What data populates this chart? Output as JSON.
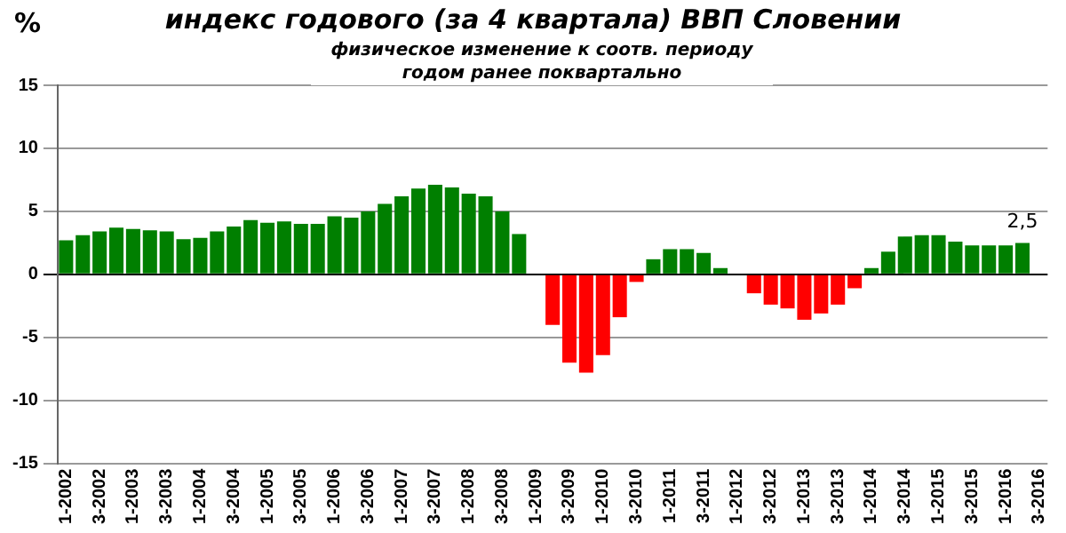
{
  "chart_data": {
    "type": "bar",
    "title": "индекс годового (за 4 квартала) ВВП Словении",
    "subtitle": "физическое изменение к соотв. периоду годом ранее поквартально",
    "ylabel": "%",
    "categories": [
      "1-2002",
      null,
      "3-2002",
      null,
      "1-2003",
      null,
      "3-2003",
      null,
      "1-2004",
      null,
      "3-2004",
      null,
      "1-2005",
      null,
      "3-2005",
      null,
      "1-2006",
      null,
      "3-2006",
      null,
      "1-2007",
      null,
      "3-2007",
      null,
      "1-2008",
      null,
      "3-2008",
      null,
      "1-2009",
      null,
      "3-2009",
      null,
      "1-2010",
      null,
      "3-2010",
      null,
      "1-2011",
      null,
      "3-2011",
      null,
      "1-2012",
      null,
      "3-2012",
      null,
      "1-2013",
      null,
      "3-2013",
      null,
      "1-2014",
      null,
      "3-2014",
      null,
      "1-2015",
      null,
      "3-2015",
      null,
      "1-2016",
      null,
      "3-2016"
    ],
    "values": [
      2.7,
      3.1,
      3.4,
      3.7,
      3.6,
      3.5,
      3.4,
      2.8,
      2.9,
      3.4,
      3.8,
      4.3,
      4.1,
      4.2,
      4.0,
      4.0,
      4.6,
      4.5,
      5.0,
      5.6,
      6.2,
      6.8,
      7.1,
      6.9,
      6.4,
      6.2,
      5.0,
      3.2,
      null,
      -4.0,
      -7.0,
      -7.8,
      -6.4,
      -3.4,
      -0.6,
      1.2,
      2.0,
      2.0,
      1.7,
      0.5,
      null,
      -1.5,
      -2.4,
      -2.7,
      -3.6,
      -3.1,
      -2.4,
      -1.1,
      0.5,
      1.8,
      3.0,
      3.1,
      3.1,
      2.6,
      2.3,
      2.3,
      2.3,
      2.5,
      null
    ],
    "colors": [
      "#007f00",
      "#007f00",
      "#007f00",
      "#007f00",
      "#007f00",
      "#007f00",
      "#007f00",
      "#007f00",
      "#007f00",
      "#007f00",
      "#007f00",
      "#007f00",
      "#007f00",
      "#007f00",
      "#007f00",
      "#007f00",
      "#007f00",
      "#007f00",
      "#007f00",
      "#007f00",
      "#007f00",
      "#007f00",
      "#007f00",
      "#007f00",
      "#007f00",
      "#007f00",
      "#007f00",
      "#007f00",
      "#007f00",
      "#ff0000",
      "#ff0000",
      "#ff0000",
      "#ff0000",
      "#ff0000",
      "#ff0000",
      "#007f00",
      "#007f00",
      "#007f00",
      "#007f00",
      "#007f00",
      "#007f00",
      "#ff0000",
      "#ff0000",
      "#ff0000",
      "#ff0000",
      "#ff0000",
      "#ff0000",
      "#ff0000",
      "#007f00",
      "#007f00",
      "#007f00",
      "#007f00",
      "#007f00",
      "#007f00",
      "#007f00",
      "#007f00",
      "#007f00",
      "#007f00",
      "#007f00"
    ],
    "value_labels": [
      null,
      null,
      null,
      null,
      null,
      null,
      null,
      null,
      null,
      null,
      null,
      null,
      null,
      null,
      null,
      null,
      null,
      null,
      null,
      null,
      null,
      null,
      null,
      null,
      null,
      null,
      null,
      null,
      null,
      null,
      null,
      null,
      null,
      null,
      null,
      null,
      null,
      null,
      null,
      null,
      null,
      null,
      null,
      null,
      null,
      null,
      null,
      null,
      null,
      null,
      null,
      null,
      null,
      null,
      null,
      null,
      null,
      "2,5",
      null
    ],
    "ylim": [
      -15,
      15
    ],
    "yticks": [
      -15,
      -10,
      -5,
      0,
      5,
      10,
      15
    ],
    "grid": "y"
  }
}
